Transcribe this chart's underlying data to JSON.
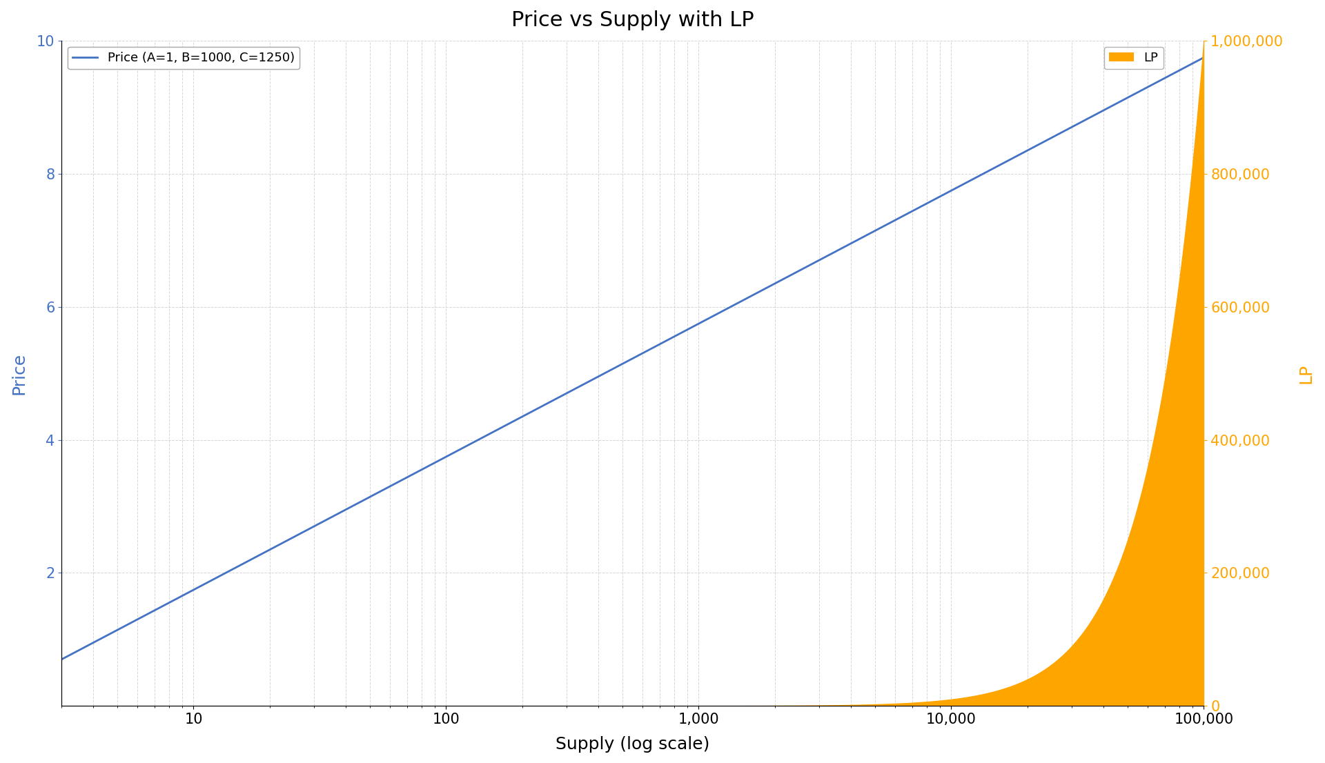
{
  "title": "Price vs Supply with LP",
  "xlabel": "Supply (log scale)",
  "ylabel_left": "Price",
  "ylabel_right": "LP",
  "A": 1,
  "B": 1000,
  "C": 1250,
  "S_min": 3,
  "S_max": 100000,
  "price_ylim": [
    0,
    10
  ],
  "lp_ylim": [
    0,
    1000000
  ],
  "price_color": "#4472c4",
  "lp_color": "#FFA500",
  "legend_price_label": "Price (A=1, B=1000, C=1250)",
  "legend_lp_label": "LP",
  "background_color": "#ffffff",
  "grid_color": "#cccccc",
  "title_fontsize": 22,
  "label_fontsize": 18,
  "tick_fontsize": 15
}
